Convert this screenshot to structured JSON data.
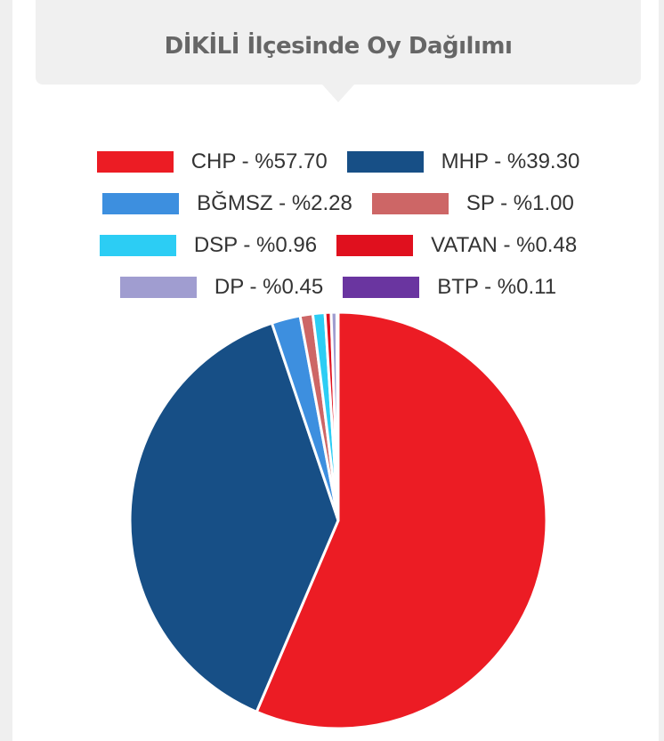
{
  "title": "DİKİLİ İlçesinde Oy Dağılımı",
  "chart_data": {
    "type": "pie",
    "title": "DİKİLİ İlçesinde Oy Dağılımı",
    "legend_position": "top",
    "slices": [
      {
        "label": "CHP - %57.70",
        "name": "CHP",
        "value": 57.7,
        "color": "#ec1c24"
      },
      {
        "label": "MHP - %39.30",
        "name": "MHP",
        "value": 39.3,
        "color": "#174f86"
      },
      {
        "label": "BĞMSZ - %2.28",
        "name": "BĞMSZ",
        "value": 2.28,
        "color": "#3d8fdf"
      },
      {
        "label": "SP - %1.00",
        "name": "SP",
        "value": 1.0,
        "color": "#cd6666"
      },
      {
        "label": "DSP - %0.96",
        "name": "DSP",
        "value": 0.96,
        "color": "#2ccdf4"
      },
      {
        "label": "VATAN - %0.48",
        "name": "VATAN",
        "value": 0.48,
        "color": "#e0101e"
      },
      {
        "label": "DP - %0.45",
        "name": "DP",
        "value": 0.45,
        "color": "#a09dd0"
      },
      {
        "label": "BTP - %0.11",
        "name": "BTP",
        "value": 0.11,
        "color": "#6a35a0"
      }
    ]
  }
}
